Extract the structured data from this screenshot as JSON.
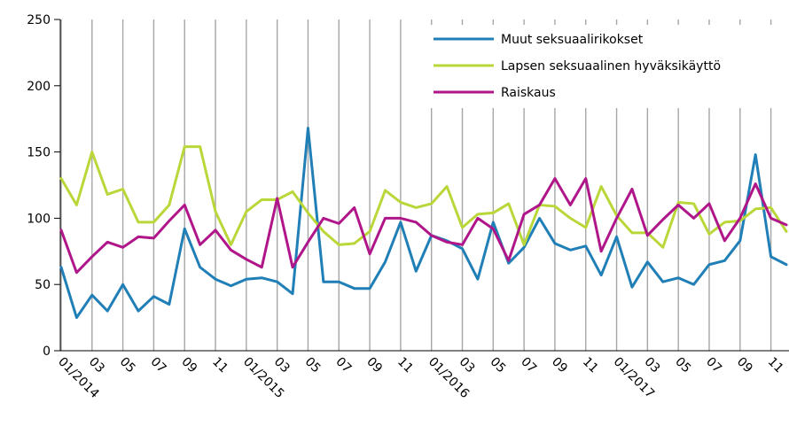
{
  "chart_data": {
    "type": "line",
    "ylim": [
      0,
      250
    ],
    "y_ticks": [
      "0",
      "50",
      "100",
      "150",
      "200",
      "250"
    ],
    "x_tick_labels": [
      "01/2014",
      "03",
      "05",
      "07",
      "09",
      "11",
      "01/2015",
      "03",
      "05",
      "07",
      "09",
      "11",
      "01/2016",
      "03",
      "05",
      "07",
      "09",
      "11",
      "01/2017",
      "03",
      "05",
      "07",
      "09",
      "11"
    ],
    "grid": {
      "vertical": true,
      "horizontal": false
    },
    "legend_position": "top-right",
    "series": [
      {
        "name": "Muut seksuaalirikokset",
        "color": "#1f7fb6",
        "values": [
          63,
          25,
          42,
          30,
          50,
          30,
          41,
          35,
          92,
          63,
          54,
          49,
          54,
          55,
          52,
          43,
          168,
          52,
          52,
          47,
          47,
          67,
          97,
          60,
          87,
          83,
          77,
          54,
          97,
          66,
          78,
          100,
          81,
          76,
          79,
          57,
          86,
          48,
          67,
          52,
          55,
          50,
          65,
          68,
          83,
          148,
          71,
          65
        ]
      },
      {
        "name": "Lapsen seksuaalinen hyväksikäyttö",
        "color": "#b9d739",
        "values": [
          130,
          110,
          150,
          118,
          122,
          97,
          97,
          110,
          154,
          154,
          105,
          80,
          105,
          114,
          114,
          120,
          104,
          90,
          80,
          81,
          90,
          121,
          112,
          108,
          111,
          124,
          93,
          103,
          104,
          111,
          80,
          110,
          109,
          100,
          93,
          124,
          102,
          89,
          89,
          78,
          112,
          111,
          88,
          97,
          98,
          107,
          108,
          90
        ]
      },
      {
        "name": "Raiskaus",
        "color": "#b0168a",
        "values": [
          91,
          59,
          71,
          82,
          78,
          86,
          85,
          98,
          110,
          80,
          91,
          76,
          69,
          63,
          115,
          63,
          82,
          100,
          96,
          108,
          73,
          100,
          100,
          97,
          87,
          82,
          80,
          100,
          92,
          68,
          103,
          110,
          130,
          110,
          130,
          75,
          100,
          122,
          87,
          99,
          110,
          100,
          111,
          83,
          100,
          126,
          100,
          95
        ]
      }
    ]
  }
}
